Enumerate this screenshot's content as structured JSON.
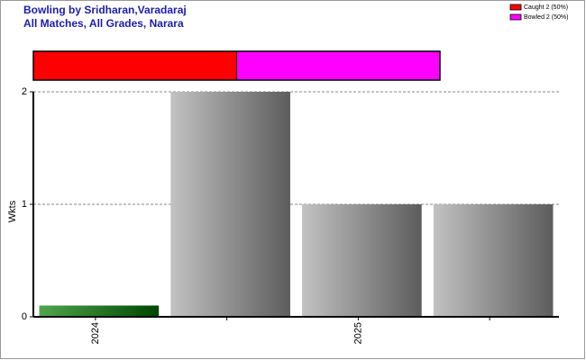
{
  "chart_data": [
    {
      "type": "proportion",
      "series": [
        {
          "name": "Caught 2 (50%)",
          "color": "#ff0000",
          "values": [
            2
          ]
        },
        {
          "name": "Bowled 2 (50%)",
          "color": "#ff00ff",
          "values": [
            2
          ]
        }
      ],
      "legend": "top-right"
    },
    {
      "type": "bar",
      "title": "Bowling by Sridharan,Varadaraj",
      "subtitle": "All Matches, All Grades, Narara",
      "ylabel": "Wkts",
      "categories": [
        "2024",
        null,
        "2025",
        null
      ],
      "values": [
        0.1,
        2,
        1,
        1
      ],
      "colors": [
        "#008000",
        "#a8a8a8",
        "#a8a8a8",
        "#a8a8a8"
      ],
      "ylim": [
        0,
        2
      ],
      "yticks": [
        0,
        1,
        2
      ],
      "grid": true
    }
  ]
}
